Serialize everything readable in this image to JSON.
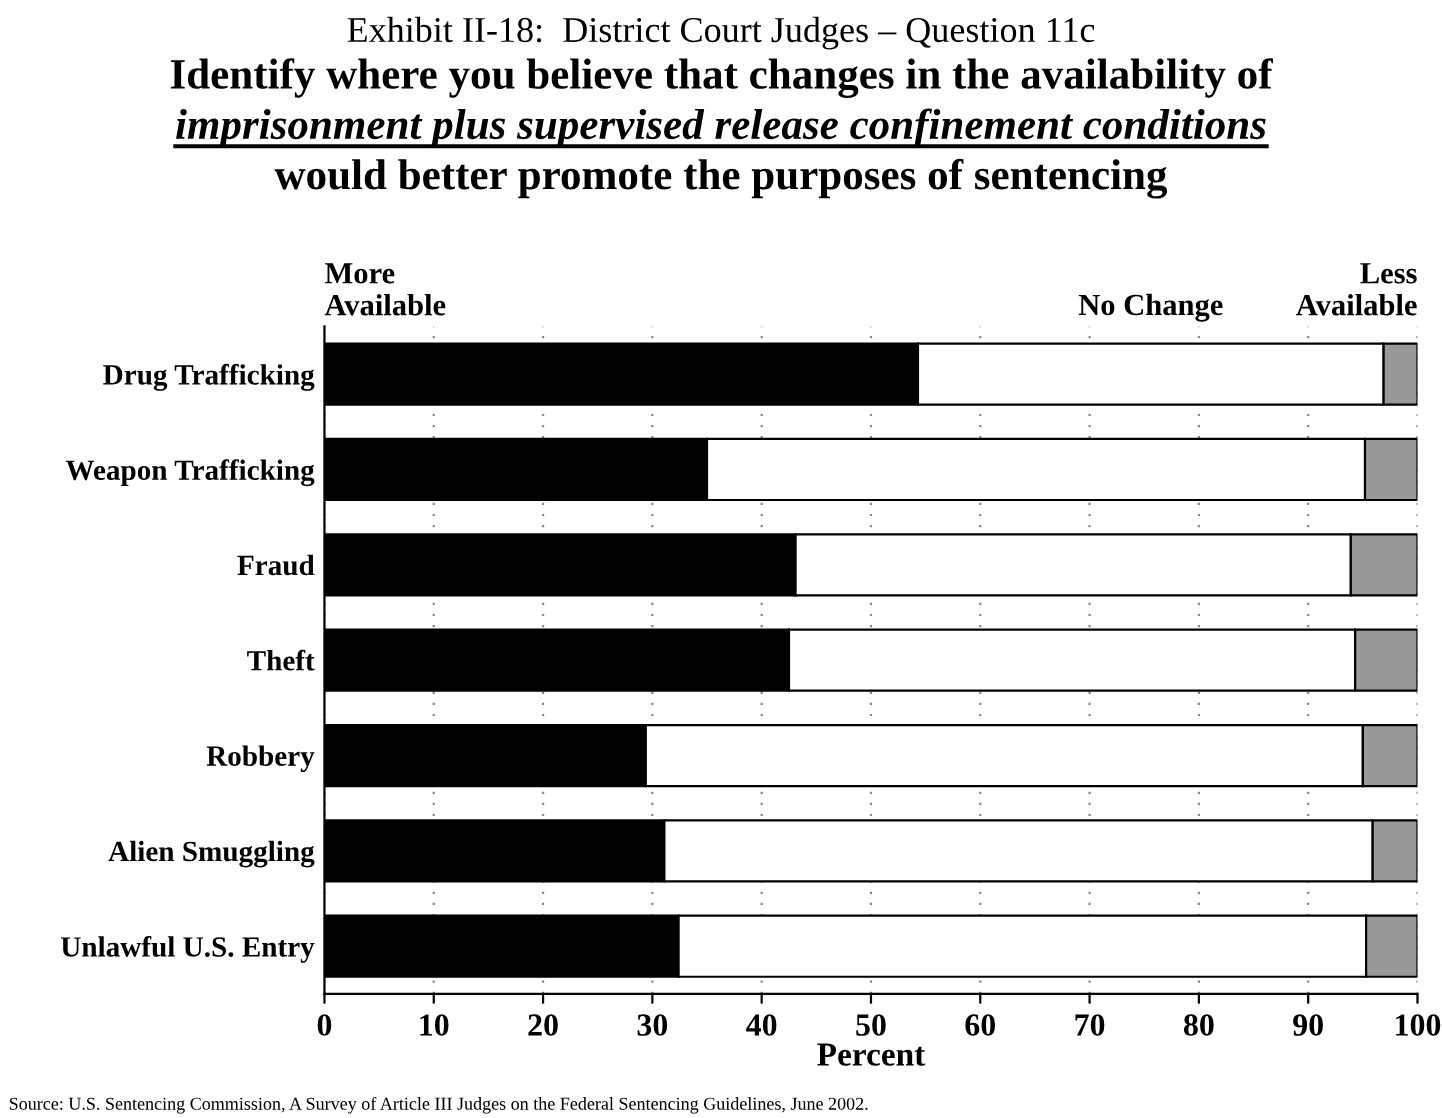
{
  "chart_data": {
    "type": "bar",
    "orientation": "horizontal",
    "stacked": true,
    "title": "Exhibit II-18:  District Court Judges – Question 11c",
    "subtitle": "Identify where you believe that changes in the availability of\nimprisonment plus supervised release confinement conditions\nwould better promote the purposes of sentencing",
    "xlabel": "Percent",
    "categories": [
      "Drug Trafficking",
      "Weapon Trafficking",
      "Fraud",
      "Theft",
      "Robbery",
      "Alien Smuggling",
      "Unlawful U.S. Entry"
    ],
    "series": [
      {
        "name": "More Available",
        "color": "#000000",
        "values": [
          54.3,
          35.0,
          43.1,
          42.5,
          29.4,
          31.1,
          32.4
        ]
      },
      {
        "name": "No Change",
        "color": "#ffffff",
        "values": [
          42.6,
          60.2,
          50.8,
          51.8,
          65.6,
          64.8,
          62.9
        ]
      },
      {
        "name": "Less Available",
        "color": "#999999",
        "values": [
          3.1,
          4.8,
          6.1,
          5.7,
          5.0,
          4.1,
          4.7
        ]
      }
    ],
    "xlim": [
      0,
      100
    ],
    "xticks": [
      0,
      10,
      20,
      30,
      40,
      50,
      60,
      70,
      80,
      90,
      100
    ],
    "grid": "x",
    "legend": "top",
    "annotations": [
      "Source: U.S. Sentencing Commission, A Survey of Article III Judges on the Federal Sentencing Guidelines, June 2002."
    ]
  }
}
